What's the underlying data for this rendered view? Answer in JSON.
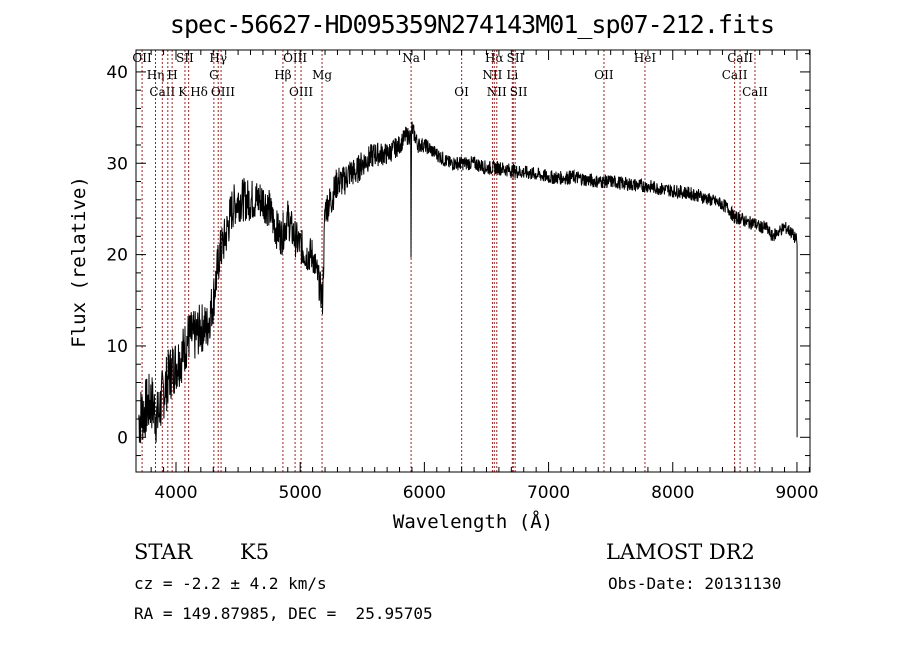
{
  "chart_data": {
    "type": "line",
    "title": "spec-56627-HD095359N274143M01_sp07-212.fits",
    "xlabel": "Wavelength (Å)",
    "ylabel": "Flux (relative)",
    "xlim": [
      3678,
      9105
    ],
    "ylim": [
      -3.8,
      42.4
    ],
    "xticks": [
      4000,
      5000,
      6000,
      7000,
      8000,
      9000
    ],
    "yticks": [
      0,
      10,
      20,
      30,
      40
    ],
    "grid": false,
    "series": [
      {
        "name": "flux",
        "x": [
          3700,
          3750,
          3800,
          3850,
          3900,
          3950,
          4000,
          4050,
          4100,
          4150,
          4200,
          4250,
          4300,
          4350,
          4400,
          4450,
          4500,
          4550,
          4600,
          4650,
          4700,
          4750,
          4800,
          4850,
          4900,
          4950,
          5000,
          5050,
          5100,
          5150,
          5180,
          5200,
          5250,
          5300,
          5350,
          5400,
          5450,
          5500,
          5600,
          5700,
          5800,
          5850,
          5890,
          5893,
          5896,
          5950,
          6000,
          6100,
          6200,
          6300,
          6400,
          6500,
          6600,
          6700,
          6800,
          6900,
          7000,
          7100,
          7200,
          7300,
          7400,
          7500,
          7600,
          7700,
          7800,
          7900,
          8000,
          8100,
          8200,
          8300,
          8400,
          8450,
          8500,
          8550,
          8600,
          8650,
          8700,
          8750,
          8800,
          8850,
          8900,
          8950,
          9000,
          9001
        ],
        "y": [
          2,
          3,
          4,
          2,
          5,
          7,
          8,
          9,
          11,
          11,
          12,
          12,
          15,
          20,
          22,
          25,
          26,
          26,
          26,
          26,
          26,
          25,
          23,
          22,
          24,
          22,
          21,
          20,
          20,
          17,
          15,
          25,
          26,
          28,
          28,
          29,
          29,
          30,
          31,
          31,
          32,
          33,
          33,
          17,
          34,
          32,
          32,
          31,
          30,
          30,
          30,
          29.5,
          29.5,
          29.2,
          29,
          28.8,
          28.5,
          28.4,
          28.5,
          28.2,
          28,
          28,
          27.8,
          27.6,
          27.5,
          27.2,
          27,
          26.8,
          26.5,
          26,
          25.5,
          25,
          24,
          24,
          23.5,
          23.5,
          23,
          23,
          22,
          22.5,
          23,
          22.5,
          21.5,
          0
        ]
      }
    ],
    "noise_level": [
      [
        3700,
        3.5
      ],
      [
        4400,
        2.5
      ],
      [
        5300,
        1.8
      ],
      [
        6000,
        0.8
      ],
      [
        9000,
        0.7
      ]
    ],
    "line_markers": [
      {
        "label": "OII",
        "w": 3727,
        "row": 1
      },
      {
        "label": "Hη",
        "w": 3835,
        "row": 2
      },
      {
        "label": "CaII",
        "w": 3890,
        "row": 3
      },
      {
        "label": "K",
        "w": 3934,
        "row": 3
      },
      {
        "label": "H",
        "w": 3969,
        "row": 2
      },
      {
        "label": "SII",
        "w": 4072,
        "row": 1
      },
      {
        "label": "Hδ",
        "w": 4102,
        "row": 3
      },
      {
        "label": "G",
        "w": 4305,
        "row": 2
      },
      {
        "label": "Hγ",
        "w": 4340,
        "row": 1
      },
      {
        "label": "OIII",
        "w": 4363,
        "row": 3
      },
      {
        "label": "Hβ",
        "w": 4861,
        "row": 2
      },
      {
        "label": "OIII",
        "w": 4959,
        "row": 1
      },
      {
        "label": "OIII",
        "w": 5007,
        "row": 3
      },
      {
        "label": "Mg",
        "w": 5176,
        "row": 2
      },
      {
        "label": "Na",
        "w": 5893,
        "row": 1
      },
      {
        "label": "OI",
        "w": 6300,
        "row": 3
      },
      {
        "label": "NII",
        "w": 6548,
        "row": 2
      },
      {
        "label": "Hα",
        "w": 6563,
        "row": 1
      },
      {
        "label": "NII",
        "w": 6583,
        "row": 3
      },
      {
        "label": "Li",
        "w": 6708,
        "row": 2
      },
      {
        "label": "SII",
        "w": 6716,
        "row": 1
      },
      {
        "label": "SII",
        "w": 6731,
        "row": 3
      },
      {
        "label": "OII",
        "w": 7446,
        "row": 2
      },
      {
        "label": "HeI",
        "w": 7776,
        "row": 1
      },
      {
        "label": "CaII",
        "w": 8498,
        "row": 2
      },
      {
        "label": "CaII",
        "w": 8542,
        "row": 1
      },
      {
        "label": "CaII",
        "w": 8662,
        "row": 3
      }
    ]
  },
  "info": {
    "class": "STAR",
    "subclass": "K5",
    "survey": "LAMOST DR2",
    "cz": "cz = -2.2 ± 4.2 km/s",
    "obs_date": "Obs-Date: 20131130",
    "radec": "RA = 149.87985, DEC =  25.95705"
  },
  "colors": {
    "axis": "#000000",
    "marker": "#a02020"
  }
}
